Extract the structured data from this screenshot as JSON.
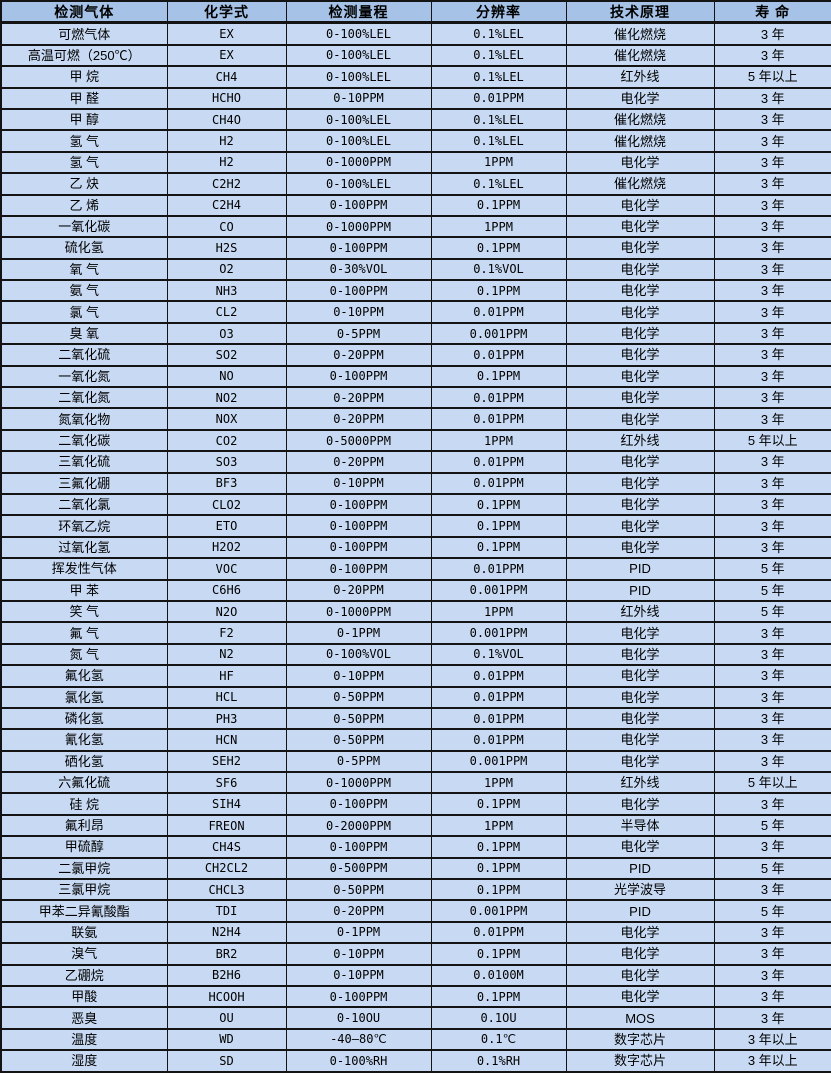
{
  "colors": {
    "header_bg": "#a6c3e7",
    "row_bg": "#c8daf3",
    "border": "#141414",
    "text": "#000000"
  },
  "table": {
    "headers": [
      "检测气体",
      "化学式",
      "检测量程",
      "分辨率",
      "技术原理",
      "寿 命"
    ],
    "rows": [
      [
        "可燃气体",
        "EX",
        "0-100%LEL",
        "0.1%LEL",
        "催化燃烧",
        "3 年"
      ],
      [
        "高温可燃（250℃）",
        "EX",
        "0-100%LEL",
        "0.1%LEL",
        "催化燃烧",
        "3 年"
      ],
      [
        "甲 烷",
        "CH4",
        "0-100%LEL",
        "0.1%LEL",
        "红外线",
        "5 年以上"
      ],
      [
        "甲 醛",
        "HCHO",
        "0-10PPM",
        "0.01PPM",
        "电化学",
        "3 年"
      ],
      [
        "甲 醇",
        "CH4O",
        "0-100%LEL",
        "0.1%LEL",
        "催化燃烧",
        "3 年"
      ],
      [
        "氢 气",
        "H2",
        "0-100%LEL",
        "0.1%LEL",
        "催化燃烧",
        "3 年"
      ],
      [
        "氢 气",
        "H2",
        "0-1000PPM",
        "1PPM",
        "电化学",
        "3 年"
      ],
      [
        "乙 炔",
        "C2H2",
        "0-100%LEL",
        "0.1%LEL",
        "催化燃烧",
        "3 年"
      ],
      [
        "乙 烯",
        "C2H4",
        "0-100PPM",
        "0.1PPM",
        "电化学",
        "3 年"
      ],
      [
        "一氧化碳",
        "CO",
        "0-1000PPM",
        "1PPM",
        "电化学",
        "3 年"
      ],
      [
        "硫化氢",
        "H2S",
        "0-100PPM",
        "0.1PPM",
        "电化学",
        "3 年"
      ],
      [
        "氧 气",
        "O2",
        "0-30%VOL",
        "0.1%VOL",
        "电化学",
        "3 年"
      ],
      [
        "氨 气",
        "NH3",
        "0-100PPM",
        "0.1PPM",
        "电化学",
        "3 年"
      ],
      [
        "氯 气",
        "CL2",
        "0-10PPM",
        "0.01PPM",
        "电化学",
        "3 年"
      ],
      [
        "臭 氧",
        "O3",
        "0-5PPM",
        "0.001PPM",
        "电化学",
        "3 年"
      ],
      [
        "二氧化硫",
        "SO2",
        "0-20PPM",
        "0.01PPM",
        "电化学",
        "3 年"
      ],
      [
        "一氧化氮",
        "NO",
        "0-100PPM",
        "0.1PPM",
        "电化学",
        "3 年"
      ],
      [
        "二氧化氮",
        "NO2",
        "0-20PPM",
        "0.01PPM",
        "电化学",
        "3 年"
      ],
      [
        "氮氧化物",
        "NOX",
        "0-20PPM",
        "0.01PPM",
        "电化学",
        "3 年"
      ],
      [
        "二氧化碳",
        "CO2",
        "0-5000PPM",
        "1PPM",
        "红外线",
        "5 年以上"
      ],
      [
        "三氧化硫",
        "SO3",
        "0-20PPM",
        "0.01PPM",
        "电化学",
        "3 年"
      ],
      [
        "三氟化硼",
        "BF3",
        "0-10PPM",
        "0.01PPM",
        "电化学",
        "3 年"
      ],
      [
        "二氧化氯",
        "CLO2",
        "0-100PPM",
        "0.1PPM",
        "电化学",
        "3 年"
      ],
      [
        "环氧乙烷",
        "ETO",
        "0-100PPM",
        "0.1PPM",
        "电化学",
        "3 年"
      ],
      [
        "过氧化氢",
        "H2O2",
        "0-100PPM",
        "0.1PPM",
        "电化学",
        "3 年"
      ],
      [
        "挥发性气体",
        "VOC",
        "0-100PPM",
        "0.01PPM",
        "PID",
        "5 年"
      ],
      [
        "甲 苯",
        "C6H6",
        "0-20PPM",
        "0.001PPM",
        "PID",
        "5 年"
      ],
      [
        "笑 气",
        "N2O",
        "0-1000PPM",
        "1PPM",
        "红外线",
        "5 年"
      ],
      [
        "氟 气",
        "F2",
        "0-1PPM",
        "0.001PPM",
        "电化学",
        "3 年"
      ],
      [
        "氮 气",
        "N2",
        "0-100%VOL",
        "0.1%VOL",
        "电化学",
        "3 年"
      ],
      [
        "氟化氢",
        "HF",
        "0-10PPM",
        "0.01PPM",
        "电化学",
        "3 年"
      ],
      [
        "氯化氢",
        "HCL",
        "0-50PPM",
        "0.01PPM",
        "电化学",
        "3 年"
      ],
      [
        "磷化氢",
        "PH3",
        "0-50PPM",
        "0.01PPM",
        "电化学",
        "3 年"
      ],
      [
        "氰化氢",
        "HCN",
        "0-50PPM",
        "0.01PPM",
        "电化学",
        "3 年"
      ],
      [
        "硒化氢",
        "SEH2",
        "0-5PPM",
        "0.001PPM",
        "电化学",
        "3 年"
      ],
      [
        "六氟化硫",
        "SF6",
        "0-1000PPM",
        "1PPM",
        "红外线",
        "5 年以上"
      ],
      [
        "硅 烷",
        "SIH4",
        "0-100PPM",
        "0.1PPM",
        "电化学",
        "3 年"
      ],
      [
        "氟利昂",
        "FREON",
        "0-2000PPM",
        "1PPM",
        "半导体",
        "5 年"
      ],
      [
        "甲硫醇",
        "CH4S",
        "0-100PPM",
        "0.1PPM",
        "电化学",
        "3 年"
      ],
      [
        "二氯甲烷",
        "CH2CL2",
        "0-500PPM",
        "0.1PPM",
        "PID",
        "5 年"
      ],
      [
        "三氯甲烷",
        "CHCL3",
        "0-50PPM",
        "0.1PPM",
        "光学波导",
        "3 年"
      ],
      [
        "甲苯二异氰酸酯",
        "TDI",
        "0-20PPM",
        "0.001PPM",
        "PID",
        "5 年"
      ],
      [
        "联氨",
        "N2H4",
        "0-1PPM",
        "0.01PPM",
        "电化学",
        "3 年"
      ],
      [
        "溴气",
        "BR2",
        "0-10PPM",
        "0.1PPM",
        "电化学",
        "3 年"
      ],
      [
        "乙硼烷",
        "B2H6",
        "0-10PPM",
        "0.0100M",
        "电化学",
        "3 年"
      ],
      [
        "甲酸",
        "HCOOH",
        "0-100PPM",
        "0.1PPM",
        "电化学",
        "3 年"
      ],
      [
        "恶臭",
        "OU",
        "0-10OU",
        "0.1OU",
        "MOS",
        "3 年"
      ],
      [
        "温度",
        "WD",
        "-40—80℃",
        "0.1℃",
        "数字芯片",
        "3 年以上"
      ],
      [
        "湿度",
        "SD",
        "0-100%RH",
        "0.1%RH",
        "数字芯片",
        "3 年以上"
      ]
    ]
  }
}
